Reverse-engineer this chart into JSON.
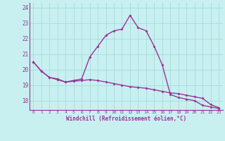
{
  "xlabel": "Windchill (Refroidissement éolien,°C)",
  "bg_color": "#c8f0f0",
  "grid_color": "#aadddd",
  "line_color": "#993399",
  "hours": [
    0,
    1,
    2,
    3,
    4,
    5,
    6,
    7,
    8,
    9,
    10,
    11,
    12,
    13,
    14,
    15,
    16,
    17,
    18,
    19,
    20,
    21,
    22,
    23
  ],
  "temp": [
    20.5,
    19.9,
    19.5,
    19.4,
    19.2,
    19.3,
    19.4,
    20.8,
    21.5,
    22.2,
    22.5,
    22.6,
    23.5,
    22.7,
    22.5,
    21.5,
    20.3,
    18.4,
    18.2,
    18.1,
    18.0,
    17.7,
    17.6,
    17.5
  ],
  "windchill": [
    20.5,
    19.9,
    19.5,
    19.35,
    19.2,
    19.25,
    19.3,
    19.35,
    19.3,
    19.2,
    19.1,
    19.0,
    18.9,
    18.85,
    18.8,
    18.7,
    18.6,
    18.5,
    18.45,
    18.35,
    18.25,
    18.15,
    17.75,
    17.55
  ],
  "ylim": [
    17.4,
    24.3
  ],
  "yticks": [
    18,
    19,
    20,
    21,
    22,
    23,
    24
  ],
  "xlim": [
    -0.5,
    23.5
  ]
}
